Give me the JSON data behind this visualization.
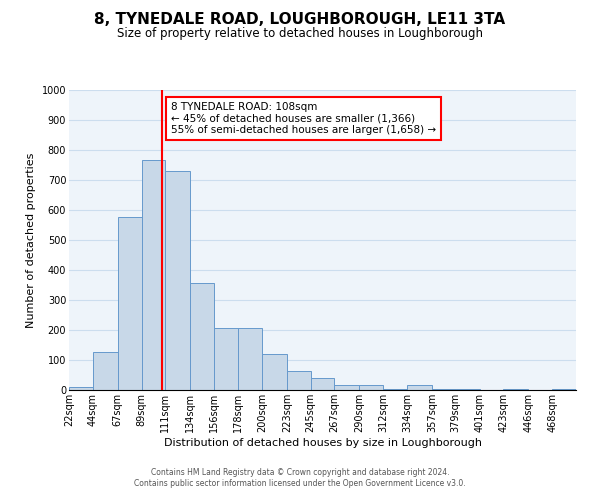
{
  "title": "8, TYNEDALE ROAD, LOUGHBOROUGH, LE11 3TA",
  "subtitle": "Size of property relative to detached houses in Loughborough",
  "xlabel": "Distribution of detached houses by size in Loughborough",
  "ylabel": "Number of detached properties",
  "bin_labels": [
    "22sqm",
    "44sqm",
    "67sqm",
    "89sqm",
    "111sqm",
    "134sqm",
    "156sqm",
    "178sqm",
    "200sqm",
    "223sqm",
    "245sqm",
    "267sqm",
    "290sqm",
    "312sqm",
    "334sqm",
    "357sqm",
    "379sqm",
    "401sqm",
    "423sqm",
    "446sqm",
    "468sqm"
  ],
  "bin_edges": [
    22,
    44,
    67,
    89,
    111,
    134,
    156,
    178,
    200,
    223,
    245,
    267,
    290,
    312,
    334,
    357,
    379,
    401,
    423,
    446,
    468,
    490
  ],
  "bar_heights": [
    10,
    128,
    578,
    768,
    730,
    358,
    207,
    207,
    120,
    63,
    40,
    18,
    18,
    5,
    18,
    5,
    5,
    0,
    5,
    0,
    5
  ],
  "bar_color": "#c8d8e8",
  "bar_edge_color": "#6699cc",
  "property_value": 108,
  "vline_color": "red",
  "annotation_text": "8 TYNEDALE ROAD: 108sqm\n← 45% of detached houses are smaller (1,366)\n55% of semi-detached houses are larger (1,658) →",
  "annotation_box_color": "white",
  "annotation_box_edge_color": "red",
  "ylim": [
    0,
    1000
  ],
  "yticks": [
    0,
    100,
    200,
    300,
    400,
    500,
    600,
    700,
    800,
    900,
    1000
  ],
  "grid_color": "#ccddee",
  "background_color": "#eef4fa",
  "footer_line1": "Contains HM Land Registry data © Crown copyright and database right 2024.",
  "footer_line2": "Contains public sector information licensed under the Open Government Licence v3.0.",
  "title_fontsize": 11,
  "subtitle_fontsize": 8.5,
  "tick_fontsize": 7,
  "ylabel_fontsize": 8,
  "xlabel_fontsize": 8,
  "annotation_fontsize": 7.5,
  "footer_fontsize": 5.5
}
